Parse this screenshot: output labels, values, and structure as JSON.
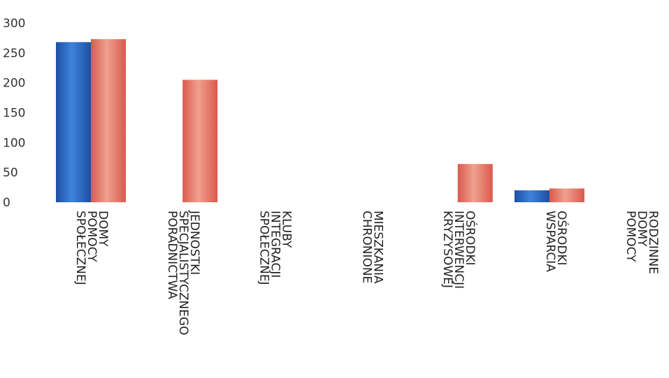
{
  "chart_data": {
    "type": "bar",
    "categories": [
      [
        "DOMY",
        "POMOCY",
        "SPOŁECZNEJ"
      ],
      [
        "JEDNOSTKI",
        "SPECJALISTYCZNEGO",
        "PORADNICTWA"
      ],
      [
        "KLUBY",
        "INTEGRACJI",
        "SPOŁECZNEJ"
      ],
      [
        "MIESZKANIA",
        "CHRONIONE"
      ],
      [
        "OŚRODKI",
        "INTERWENCJI",
        "KRYZYSOWEJ"
      ],
      [
        "OŚRODKI",
        "WSPARCIA"
      ],
      [
        "RODZINNE",
        "DOMY",
        "POMOCY"
      ]
    ],
    "series": [
      {
        "values": [
          268,
          0,
          0,
          0,
          0,
          20,
          0
        ]
      },
      {
        "values": [
          273,
          205,
          0,
          0,
          64,
          23,
          0
        ]
      }
    ],
    "yticks": [
      "0",
      "50",
      "100",
      "150",
      "200",
      "250",
      "300"
    ],
    "ylim": [
      0,
      300
    ],
    "colors": {
      "series_0_dark": "#1c4fa3",
      "series_0_light": "#3f82dc",
      "series_1_dark": "#d95a4c",
      "series_1_light": "#f0a090"
    },
    "grid": false,
    "legend": "none"
  }
}
